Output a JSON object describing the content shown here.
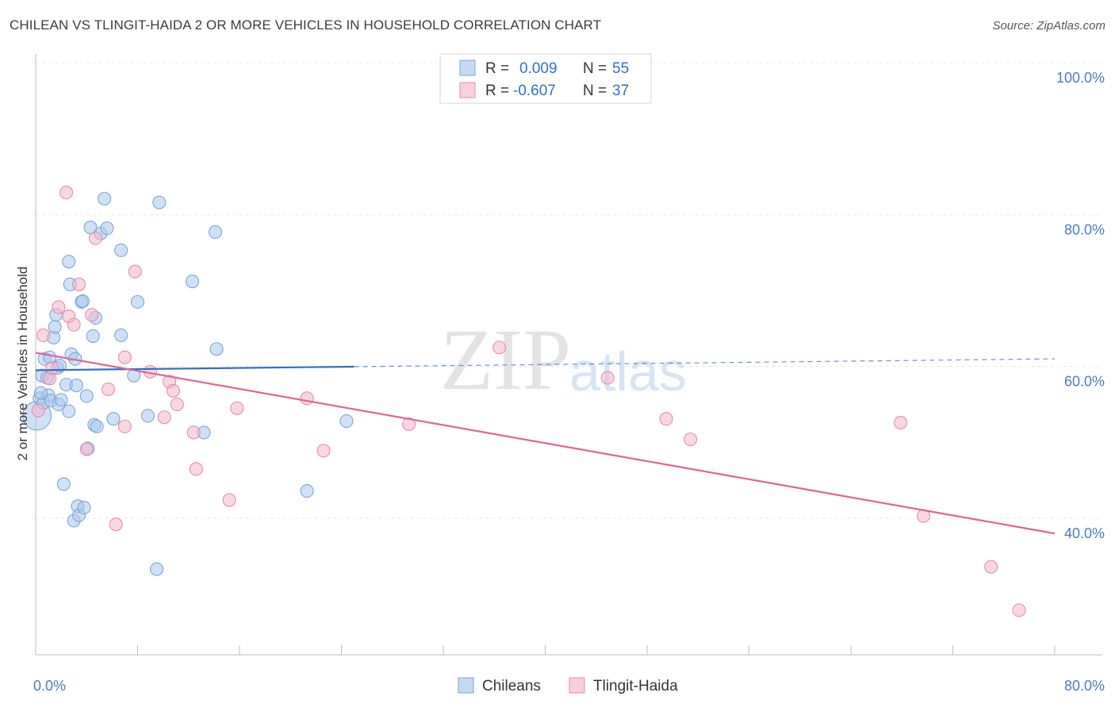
{
  "header": {
    "title": "CHILEAN VS TLINGIT-HAIDA 2 OR MORE VEHICLES IN HOUSEHOLD CORRELATION CHART",
    "source": "Source: ZipAtlas.com"
  },
  "watermark": {
    "zip": "ZIP",
    "atlas": "atlas"
  },
  "stats_box": {
    "rows": [
      {
        "r_label": "R =",
        "r_value": "0.009",
        "n_label": "N =",
        "n_value": "55",
        "color": "#a9c8ef"
      },
      {
        "r_label": "R =",
        "r_value": "-0.607",
        "n_label": "N =",
        "n_value": "37",
        "color": "#f4b6cb"
      }
    ]
  },
  "chart_data": {
    "type": "scatter",
    "title": "CHILEAN VS TLINGIT-HAIDA 2 OR MORE VEHICLES IN HOUSEHOLD CORRELATION CHART",
    "ylabel": "2 or more Vehicles in Household",
    "xlabel": "",
    "xlim": [
      0,
      80
    ],
    "ylim": [
      22,
      102
    ],
    "x_tick_labels": [
      "0.0%",
      "80.0%"
    ],
    "y_ticks": [
      {
        "value": 100,
        "label": "100.0%"
      },
      {
        "value": 80,
        "label": "80.0%"
      },
      {
        "value": 60,
        "label": "60.0%"
      },
      {
        "value": 40,
        "label": "40.0%"
      }
    ],
    "grid": true,
    "legend": "bottom-center",
    "series": [
      {
        "name": "Chileans",
        "color": "#a9c8ef",
        "stroke": "#7aa6dc",
        "trend_color": "#2f6fcf",
        "trend": {
          "x0": 0,
          "y0": 59.5,
          "x1": 80,
          "y1": 61.0,
          "solid_until_x": 25
        },
        "points": [
          [
            0.1,
            53.5
          ],
          [
            0.3,
            55.8
          ],
          [
            0.5,
            58.8
          ],
          [
            0.6,
            55.2
          ],
          [
            0.7,
            61.0
          ],
          [
            0.9,
            58.5
          ],
          [
            1.0,
            56.2
          ],
          [
            1.1,
            61.2
          ],
          [
            1.2,
            55.5
          ],
          [
            1.4,
            63.8
          ],
          [
            1.5,
            65.2
          ],
          [
            1.6,
            66.8
          ],
          [
            1.7,
            59.8
          ],
          [
            1.8,
            55.0
          ],
          [
            2.0,
            55.6
          ],
          [
            2.2,
            44.5
          ],
          [
            2.4,
            57.6
          ],
          [
            2.6,
            54.1
          ],
          [
            2.6,
            73.8
          ],
          [
            2.7,
            70.8
          ],
          [
            2.8,
            61.6
          ],
          [
            3.0,
            39.7
          ],
          [
            3.1,
            61.0
          ],
          [
            3.2,
            57.5
          ],
          [
            3.3,
            41.6
          ],
          [
            3.4,
            40.4
          ],
          [
            3.6,
            68.5
          ],
          [
            3.7,
            68.6
          ],
          [
            3.8,
            41.4
          ],
          [
            4.0,
            56.1
          ],
          [
            4.1,
            49.2
          ],
          [
            4.3,
            78.3
          ],
          [
            4.5,
            64.0
          ],
          [
            4.6,
            52.3
          ],
          [
            4.7,
            66.4
          ],
          [
            4.8,
            52.1
          ],
          [
            5.1,
            77.5
          ],
          [
            5.4,
            82.1
          ],
          [
            5.6,
            78.2
          ],
          [
            6.1,
            53.1
          ],
          [
            6.7,
            75.3
          ],
          [
            6.7,
            64.1
          ],
          [
            7.7,
            58.8
          ],
          [
            8.0,
            68.5
          ],
          [
            8.8,
            53.5
          ],
          [
            9.5,
            33.3
          ],
          [
            9.7,
            81.6
          ],
          [
            12.3,
            71.2
          ],
          [
            13.2,
            51.3
          ],
          [
            14.1,
            77.7
          ],
          [
            14.2,
            62.3
          ],
          [
            21.3,
            43.6
          ],
          [
            24.4,
            52.8
          ],
          [
            0.4,
            56.5
          ],
          [
            1.9,
            60.1
          ]
        ]
      },
      {
        "name": "Tlingit-Haida",
        "color": "#f4b6cb",
        "stroke": "#e98aad",
        "trend_color": "#e06493",
        "trend": {
          "x0": 0,
          "y0": 61.8,
          "x1": 80,
          "y1": 38.0,
          "solid_until_x": 80
        },
        "points": [
          [
            0.2,
            54.2
          ],
          [
            0.6,
            64.1
          ],
          [
            1.1,
            58.4
          ],
          [
            1.3,
            59.8
          ],
          [
            1.8,
            67.8
          ],
          [
            2.4,
            82.9
          ],
          [
            2.6,
            66.6
          ],
          [
            3.0,
            65.5
          ],
          [
            3.4,
            70.8
          ],
          [
            4.0,
            49.1
          ],
          [
            4.4,
            66.8
          ],
          [
            4.7,
            76.9
          ],
          [
            5.7,
            57.0
          ],
          [
            6.3,
            39.2
          ],
          [
            7.0,
            61.2
          ],
          [
            7.0,
            52.1
          ],
          [
            7.8,
            72.5
          ],
          [
            9.0,
            59.3
          ],
          [
            10.1,
            53.3
          ],
          [
            10.5,
            58.0
          ],
          [
            10.8,
            56.8
          ],
          [
            11.1,
            55.0
          ],
          [
            12.4,
            51.3
          ],
          [
            12.6,
            46.5
          ],
          [
            15.2,
            42.4
          ],
          [
            15.8,
            54.5
          ],
          [
            21.3,
            55.8
          ],
          [
            22.6,
            48.9
          ],
          [
            29.3,
            52.4
          ],
          [
            36.4,
            62.5
          ],
          [
            44.9,
            58.5
          ],
          [
            49.5,
            53.1
          ],
          [
            51.4,
            50.4
          ],
          [
            67.9,
            52.6
          ],
          [
            69.7,
            40.3
          ],
          [
            75.0,
            33.6
          ],
          [
            77.2,
            27.9
          ]
        ]
      }
    ]
  }
}
